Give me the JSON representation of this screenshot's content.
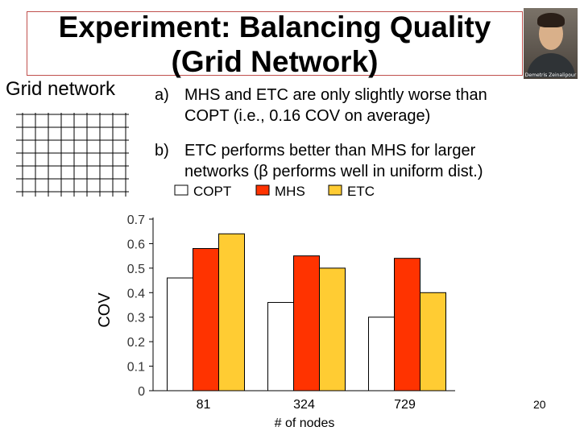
{
  "slide": {
    "title_line1": "Experiment: Balancing Quality",
    "title_line2": "(Grid Network)",
    "photo_caption": "Demetris Zeinalipour",
    "grid_label": "Grid network",
    "bullets": [
      {
        "marker": "a)",
        "lines": [
          "MHS and ETC are only slightly worse than",
          "COPT (i.e., 0.16 COV on average)"
        ]
      },
      {
        "marker": "b)",
        "lines": [
          "ETC performs better than MHS for larger",
          "networks (β performs well in uniform dist.)"
        ]
      }
    ],
    "slide_number": "20",
    "colors": {
      "title_border": "#c0504d",
      "copt": "#ffffff",
      "mhs": "#ff3300",
      "etc": "#ffcc33"
    }
  },
  "chart_data": {
    "type": "bar",
    "title": "",
    "xlabel": "# of nodes",
    "ylabel": "COV",
    "ylim": [
      0,
      0.7
    ],
    "yticks": [
      "0",
      "0.1",
      "0.2",
      "0.3",
      "0.4",
      "0.5",
      "0.6",
      "0.7"
    ],
    "categories": [
      "81",
      "324",
      "729"
    ],
    "legend_position": "top",
    "grid": false,
    "series": [
      {
        "name": "COPT",
        "color": "#ffffff",
        "values": [
          0.46,
          0.36,
          0.3
        ]
      },
      {
        "name": "MHS",
        "color": "#ff3300",
        "values": [
          0.58,
          0.55,
          0.54
        ]
      },
      {
        "name": "ETC",
        "color": "#ffcc33",
        "values": [
          0.64,
          0.5,
          0.4
        ]
      }
    ]
  }
}
